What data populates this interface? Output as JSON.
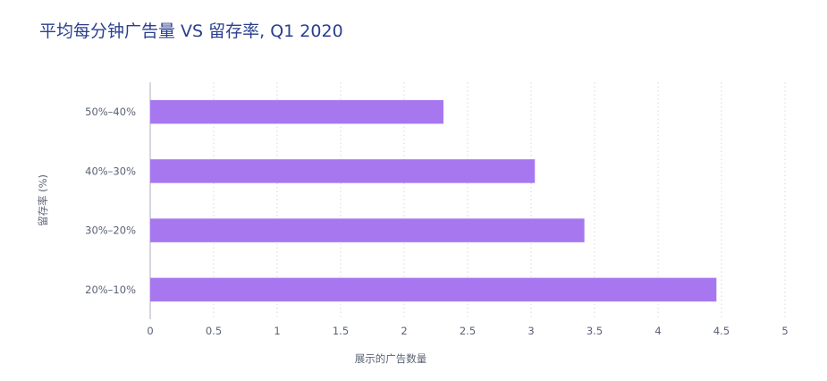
{
  "chart_data": {
    "type": "bar",
    "orientation": "horizontal",
    "title": "平均每分钟广告量 VS 留存率, Q1 2020",
    "xlabel": "展示的广告数量",
    "ylabel": "留存率 (%)",
    "categories": [
      "50%–40%",
      "40%–30%",
      "30%–20%",
      "20%–10%"
    ],
    "values": [
      2.31,
      3.03,
      3.42,
      4.46
    ],
    "xlim": [
      0,
      5
    ],
    "xticks": [
      "0",
      "0.5",
      "1",
      "1.5",
      "2",
      "2.5",
      "3",
      "3.5",
      "4",
      "4.5",
      "5"
    ],
    "grid": "vertical-dotted",
    "legend": "none",
    "colors": {
      "bar": "#a777f0",
      "title": "#2a3f8f",
      "grid": "#d5d8df",
      "axis": "#c9ccd3",
      "text": "#5a6275"
    }
  }
}
